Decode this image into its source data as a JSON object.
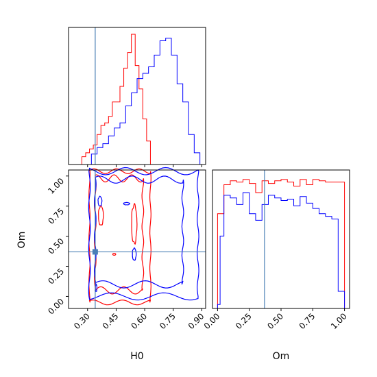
{
  "chart_data": {
    "type": "corner",
    "parameters": [
      "H0",
      "Om"
    ],
    "axis_labels": {
      "x_bottom_left": "H0",
      "y_left": "Om",
      "x_bottom_right": "Om"
    },
    "ranges": {
      "H0": [
        0.2,
        0.92
      ],
      "Om": [
        -0.1,
        1.05
      ]
    },
    "ticks": {
      "H0": [
        "0.30",
        "0.45",
        "0.60",
        "0.75",
        "0.90"
      ],
      "Om": [
        "0.00",
        "0.25",
        "0.50",
        "0.75",
        "1.00"
      ]
    },
    "truth": {
      "H0": 0.34,
      "Om": 0.37
    },
    "colors": {
      "red": "#ff0000",
      "blue": "#0000ff",
      "truth": "#4a7fb5"
    },
    "series": [
      {
        "color": "red",
        "h0_hist": {
          "edges": [
            0.27,
            0.29,
            0.31,
            0.33,
            0.35,
            0.37,
            0.39,
            0.41,
            0.43,
            0.45,
            0.47,
            0.49,
            0.51,
            0.53,
            0.55,
            0.57,
            0.59,
            0.61,
            0.63
          ],
          "heights": [
            0.06,
            0.09,
            0.12,
            0.15,
            0.23,
            0.3,
            0.32,
            0.37,
            0.48,
            0.48,
            0.6,
            0.74,
            0.86,
            1.0,
            0.76,
            0.58,
            0.35,
            0.18
          ]
        },
        "om_hist": {
          "edges": [
            0.0,
            0.05,
            0.1,
            0.15,
            0.2,
            0.25,
            0.3,
            0.35,
            0.4,
            0.45,
            0.5,
            0.55,
            0.6,
            0.65,
            0.7,
            0.75,
            0.8,
            0.85,
            0.9,
            0.95,
            1.0
          ],
          "heights": [
            0.72,
            0.94,
            0.97,
            0.96,
            0.98,
            0.95,
            0.88,
            0.97,
            0.95,
            0.97,
            0.98,
            0.96,
            0.93,
            0.98,
            0.94,
            0.98,
            0.97,
            0.96,
            0.96,
            0.96
          ]
        }
      },
      {
        "color": "blue",
        "h0_hist": {
          "edges": [
            0.32,
            0.35,
            0.38,
            0.41,
            0.44,
            0.47,
            0.5,
            0.53,
            0.56,
            0.59,
            0.62,
            0.65,
            0.68,
            0.71,
            0.74,
            0.77,
            0.8,
            0.83,
            0.86,
            0.89
          ],
          "heights": [
            0.08,
            0.13,
            0.16,
            0.22,
            0.28,
            0.32,
            0.45,
            0.55,
            0.66,
            0.7,
            0.75,
            0.84,
            0.95,
            0.97,
            0.84,
            0.62,
            0.48,
            0.23,
            0.09
          ]
        },
        "om_hist": {
          "edges": [
            0.0,
            0.02,
            0.05,
            0.1,
            0.15,
            0.2,
            0.25,
            0.3,
            0.35,
            0.4,
            0.45,
            0.5,
            0.55,
            0.6,
            0.65,
            0.7,
            0.75,
            0.8,
            0.85,
            0.9,
            0.95,
            1.0
          ],
          "heights": [
            0.03,
            0.55,
            0.86,
            0.84,
            0.79,
            0.88,
            0.72,
            0.67,
            0.79,
            0.86,
            0.84,
            0.82,
            0.83,
            0.78,
            0.85,
            0.8,
            0.76,
            0.72,
            0.7,
            0.68,
            0.13
          ]
        }
      }
    ]
  }
}
